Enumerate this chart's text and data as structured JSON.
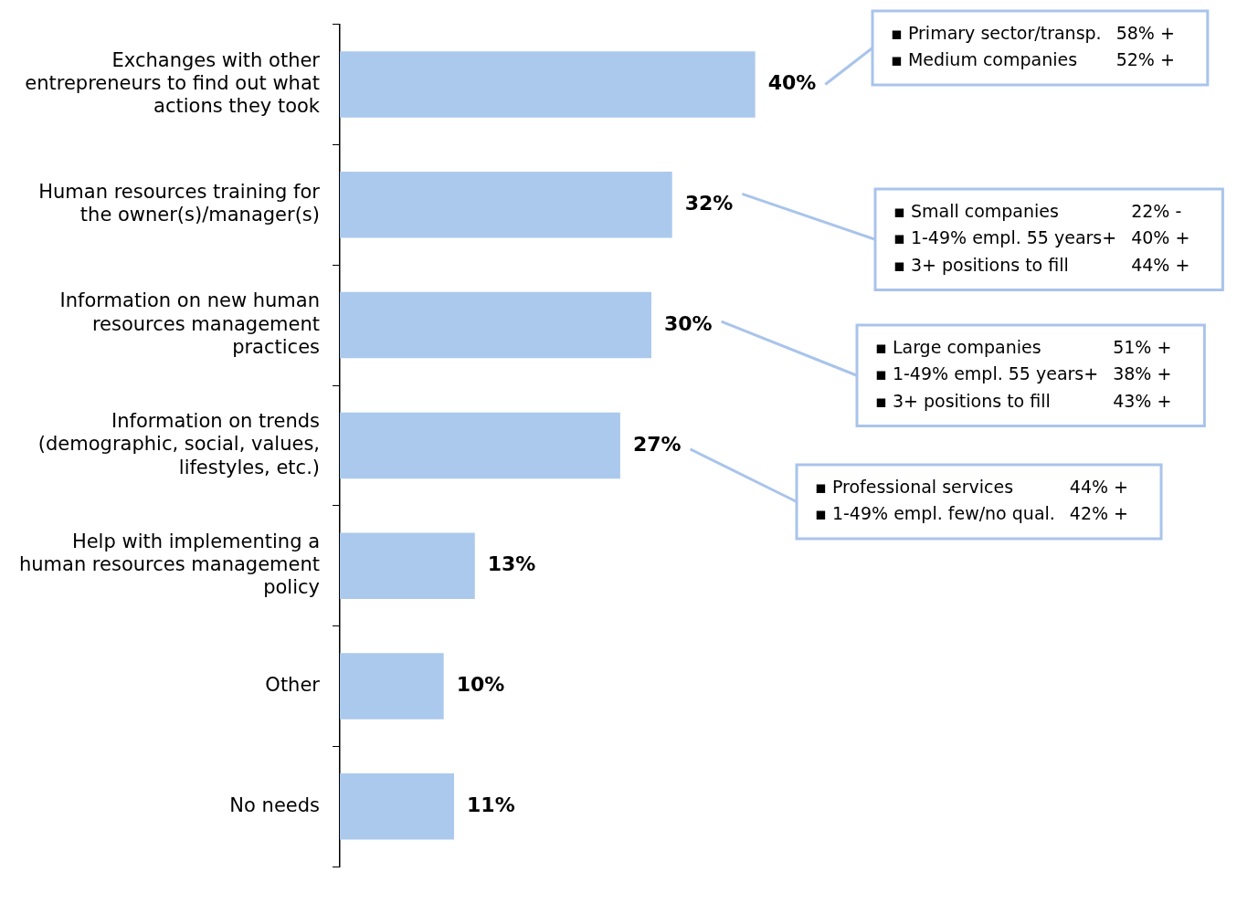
{
  "chart_data": {
    "type": "bar",
    "orientation": "horizontal",
    "data_labels": true,
    "grid": false,
    "legend": false,
    "categories": [
      "Exchanges with other entrepreneurs to find out what actions they took",
      "Human resources training for the owner(s)/manager(s)",
      "Information on new human resources management practices",
      "Information on trends (demographic, social, values, lifestyles, etc.)",
      "Help with implementing a human resources management policy",
      "Other",
      "No needs"
    ],
    "values": [
      40,
      32,
      30,
      27,
      13,
      10,
      11
    ],
    "value_labels": [
      "40%",
      "32%",
      "30%",
      "27%",
      "13%",
      "10%",
      "11%"
    ],
    "color": "#abc9ed",
    "annotations": [
      "▪ Primary sector/transp. 58% +",
      "▪ Medium companies 52% +",
      "▪ Small companies 22% -",
      "▪ 1-49% empl. 55 years+ 40% +",
      "▪ 3+ positions to fill 44% +",
      "▪ Large companies 51% +",
      "▪ 1-49% empl. 55 years+ 38% +",
      "▪ 3+ positions to fill 43% +",
      "▪ Professional services 44% +",
      "▪ 1-49% empl. few/no qual. 42% +"
    ]
  }
}
